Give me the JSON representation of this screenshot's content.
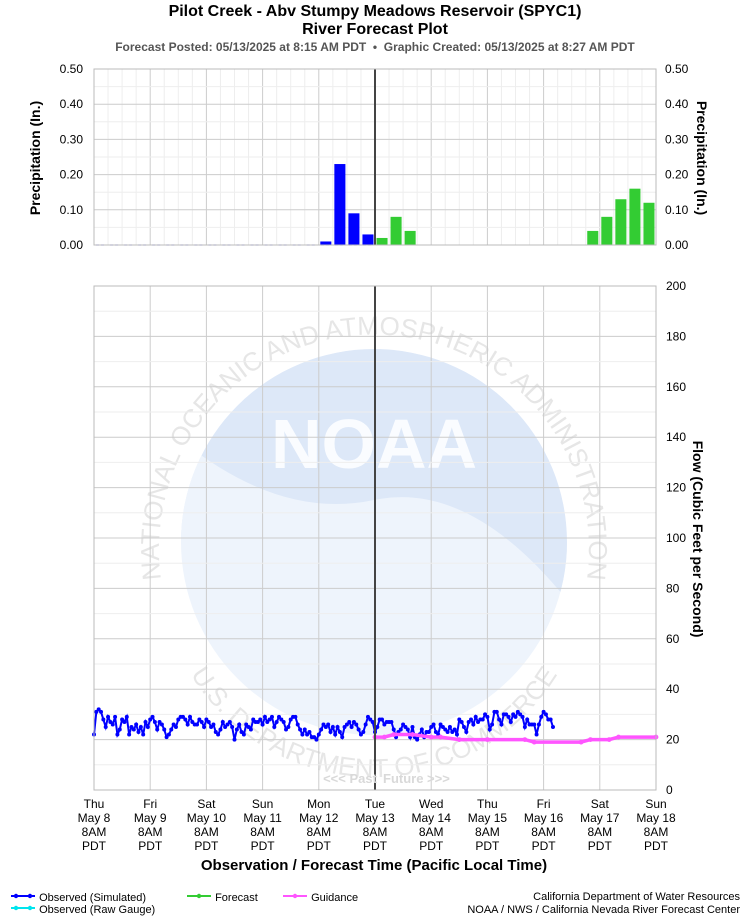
{
  "header": {
    "title_line1": "Pilot Creek - Abv Stumpy Meadows Reservoir (SPYC1)",
    "title_line2": "River Forecast Plot",
    "forecast_posted": "Forecast Posted: 05/13/2025 at 8:15 AM PDT",
    "separator": "•",
    "graphic_created": "Graphic Created: 05/13/2025 at 8:27 AM PDT"
  },
  "watermark": {
    "logo_text": "NOAA",
    "ring_text_top": "NATIONAL OCEANIC AND ATMOSPHERIC ADMINISTRATION",
    "ring_text_bottom": "U.S. DEPARTMENT OF COMMERCE"
  },
  "past_future": {
    "past": "<<< Past",
    "future": "Future >>>"
  },
  "legend": {
    "observed_simulated": "Observed (Simulated)",
    "observed_raw": "Observed (Raw Gauge)",
    "forecast": "Forecast",
    "guidance": "Guidance"
  },
  "credits": {
    "line1": "California Department of Water Resources",
    "line2": "NOAA / NWS / California Nevada River Forecast Center"
  },
  "colors": {
    "observed": "#0000ff",
    "observed_raw": "#00e5ee",
    "forecast": "#33cc33",
    "guidance": "#ff55ff",
    "now_line": "#444444",
    "grid": "#cccccc"
  },
  "chart_data": [
    {
      "type": "bar",
      "panel": "precipitation",
      "ylabel": "Precipitation (In.)",
      "ylim": [
        0,
        0.5
      ],
      "yticks": [
        "0.00",
        "0.10",
        "0.20",
        "0.30",
        "0.40",
        "0.50"
      ],
      "bar_interval_hours": 6,
      "observed": [
        {
          "t": "2025-05-12T08:00",
          "v": 0.01
        },
        {
          "t": "2025-05-12T14:00",
          "v": 0.23
        },
        {
          "t": "2025-05-12T20:00",
          "v": 0.09
        },
        {
          "t": "2025-05-13T02:00",
          "v": 0.03
        }
      ],
      "forecast": [
        {
          "t": "2025-05-13T08:00",
          "v": 0.02
        },
        {
          "t": "2025-05-13T14:00",
          "v": 0.08
        },
        {
          "t": "2025-05-13T20:00",
          "v": 0.04
        },
        {
          "t": "2025-05-17T02:00",
          "v": 0.04
        },
        {
          "t": "2025-05-17T08:00",
          "v": 0.08
        },
        {
          "t": "2025-05-17T14:00",
          "v": 0.13
        },
        {
          "t": "2025-05-17T20:00",
          "v": 0.16
        },
        {
          "t": "2025-05-18T02:00",
          "v": 0.12
        }
      ]
    },
    {
      "type": "line",
      "panel": "flow",
      "ylabel": "Flow (Cubic Feet per Second)",
      "xlabel": "Observation / Forecast Time (Pacific Local Time)",
      "ylim": [
        0,
        200
      ],
      "yticks": [
        "0",
        "20",
        "40",
        "60",
        "80",
        "100",
        "120",
        "140",
        "160",
        "180",
        "200"
      ],
      "xlim": [
        "2025-05-08T08:00",
        "2025-05-18T08:00"
      ],
      "now": "2025-05-13T08:00",
      "x_ticks": [
        {
          "day": "Thu",
          "date": "May 8",
          "time": "8AM",
          "tz": "PDT"
        },
        {
          "day": "Fri",
          "date": "May 9",
          "time": "8AM",
          "tz": "PDT"
        },
        {
          "day": "Sat",
          "date": "May 10",
          "time": "8AM",
          "tz": "PDT"
        },
        {
          "day": "Sun",
          "date": "May 11",
          "time": "8AM",
          "tz": "PDT"
        },
        {
          "day": "Mon",
          "date": "May 12",
          "time": "8AM",
          "tz": "PDT"
        },
        {
          "day": "Tue",
          "date": "May 13",
          "time": "8AM",
          "tz": "PDT"
        },
        {
          "day": "Wed",
          "date": "May 14",
          "time": "8AM",
          "tz": "PDT"
        },
        {
          "day": "Thu",
          "date": "May 15",
          "time": "8AM",
          "tz": "PDT"
        },
        {
          "day": "Fri",
          "date": "May 16",
          "time": "8AM",
          "tz": "PDT"
        },
        {
          "day": "Sat",
          "date": "May 17",
          "time": "8AM",
          "tz": "PDT"
        },
        {
          "day": "Sun",
          "date": "May 18",
          "time": "8AM",
          "tz": "PDT"
        }
      ],
      "observed_start": "2025-05-08T08:00",
      "observed_step_hours": 1,
      "observed_values": [
        22,
        31,
        32,
        31,
        28,
        25,
        29,
        27,
        26,
        29,
        22,
        24,
        28,
        27,
        29,
        22,
        25,
        24,
        26,
        23,
        25,
        22,
        27,
        25,
        28,
        29,
        27,
        24,
        27,
        26,
        24,
        21,
        22,
        24,
        26,
        25,
        28,
        29,
        29,
        28,
        26,
        29,
        27,
        26,
        26,
        28,
        27,
        25,
        28,
        27,
        25,
        26,
        23,
        22,
        24,
        27,
        25,
        26,
        27,
        25,
        20,
        24,
        26,
        23,
        22,
        26,
        25,
        24,
        28,
        27,
        27,
        28,
        26,
        29,
        27,
        28,
        29,
        25,
        27,
        29,
        28,
        27,
        24,
        25,
        28,
        29,
        29,
        26,
        24,
        22,
        24,
        22,
        23,
        21,
        21,
        20,
        22,
        24,
        26,
        25,
        26,
        23,
        25,
        22,
        25,
        23,
        21,
        25,
        26,
        27,
        25,
        27,
        26,
        24,
        22,
        23,
        26,
        29,
        28,
        27,
        23,
        25,
        28,
        28,
        26,
        27,
        27,
        27,
        24,
        21,
        23,
        24,
        26,
        25,
        24,
        21,
        25,
        21,
        20,
        22,
        24,
        21,
        23,
        23,
        25,
        26,
        23,
        22,
        26,
        25,
        24,
        23,
        25,
        23,
        24,
        22,
        28,
        27,
        25,
        23,
        27,
        28,
        26,
        29,
        27,
        28,
        28,
        30,
        29,
        24,
        26,
        31,
        31,
        28,
        26,
        30,
        30,
        29,
        27,
        30,
        29,
        31,
        30,
        29,
        25,
        28,
        26,
        26,
        26,
        22,
        26,
        29,
        31,
        30,
        28,
        28,
        25
      ],
      "guidance": [
        {
          "t": "2025-05-13T08:00",
          "v": 21
        },
        {
          "t": "2025-05-13T12:00",
          "v": 21
        },
        {
          "t": "2025-05-13T16:00",
          "v": 22
        },
        {
          "t": "2025-05-14T00:00",
          "v": 22
        },
        {
          "t": "2025-05-14T08:00",
          "v": 21
        },
        {
          "t": "2025-05-14T12:00",
          "v": 21
        },
        {
          "t": "2025-05-14T20:00",
          "v": 20
        },
        {
          "t": "2025-05-15T08:00",
          "v": 20
        },
        {
          "t": "2025-05-16T00:00",
          "v": 20
        },
        {
          "t": "2025-05-16T04:00",
          "v": 19
        },
        {
          "t": "2025-05-17T00:00",
          "v": 19
        },
        {
          "t": "2025-05-17T04:00",
          "v": 20
        },
        {
          "t": "2025-05-17T12:00",
          "v": 20
        },
        {
          "t": "2025-05-17T16:00",
          "v": 21
        },
        {
          "t": "2025-05-18T08:00",
          "v": 21
        }
      ]
    }
  ]
}
